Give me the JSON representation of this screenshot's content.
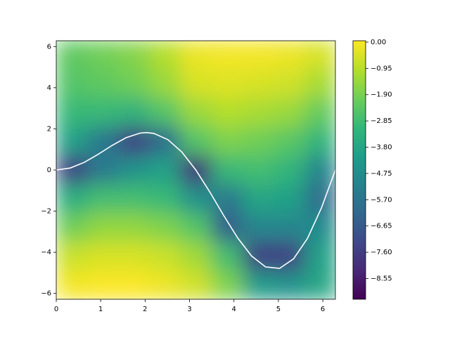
{
  "chart_data": {
    "type": "heatmap",
    "colormap": "viridis",
    "x": [
      0.35,
      1.05,
      1.75,
      2.45,
      3.15,
      3.85,
      4.55,
      5.25,
      5.95
    ],
    "y": [
      5.6,
      4.2,
      2.8,
      1.4,
      0,
      -1.4,
      -2.8,
      -4.2,
      -5.6
    ],
    "z": [
      [
        -2.3,
        -2.0,
        -1.7,
        -1.0,
        -0.2,
        -0.1,
        -0.1,
        -0.2,
        -0.5
      ],
      [
        -2.5,
        -2.3,
        -2.0,
        -1.4,
        -0.5,
        -0.4,
        -0.5,
        -0.6,
        -1.2
      ],
      [
        -3.0,
        -3.0,
        -3.3,
        -2.5,
        -1.4,
        -1.0,
        -1.2,
        -1.4,
        -2.2
      ],
      [
        -4.0,
        -5.5,
        -7.5,
        -6.0,
        -2.5,
        -1.8,
        -2.0,
        -2.4,
        -3.2
      ],
      [
        -7.5,
        -5.5,
        -4.5,
        -4.0,
        -8.0,
        -3.0,
        -2.8,
        -3.2,
        -5.0
      ],
      [
        -3.5,
        -2.8,
        -2.8,
        -3.0,
        -4.5,
        -5.5,
        -3.8,
        -4.0,
        -6.0
      ],
      [
        -2.0,
        -1.5,
        -1.5,
        -1.8,
        -2.5,
        -6.5,
        -5.0,
        -5.0,
        -4.8
      ],
      [
        -0.7,
        -0.5,
        -0.5,
        -0.7,
        -1.3,
        -2.8,
        -7.5,
        -7.5,
        -4.0
      ],
      [
        -0.1,
        0,
        0,
        -0.2,
        -0.6,
        -1.8,
        -4.2,
        -4.5,
        -3.8
      ]
    ],
    "xlim": [
      0,
      6.283
    ],
    "ylim": [
      -6.283,
      6.283
    ],
    "xticks": [
      0,
      1,
      2,
      3,
      4,
      5,
      6
    ],
    "yticks": [
      {
        "value": -6,
        "label": "−6"
      },
      {
        "value": -4,
        "label": "−4"
      },
      {
        "value": -2,
        "label": "−2"
      },
      0,
      2,
      4,
      6
    ],
    "clim": [
      -9.3,
      0.05
    ],
    "colorbar_ticks": [
      {
        "value": 0,
        "label": "0.00"
      },
      {
        "value": -0.95,
        "label": "−0.95"
      },
      {
        "value": -1.9,
        "label": "−1.90"
      },
      {
        "value": -2.85,
        "label": "−2.85"
      },
      {
        "value": -3.8,
        "label": "−3.80"
      },
      {
        "value": -4.75,
        "label": "−4.75"
      },
      {
        "value": -5.7,
        "label": "−5.70"
      },
      {
        "value": -6.65,
        "label": "−6.65"
      },
      {
        "value": -7.6,
        "label": "−7.60"
      },
      {
        "value": -8.55,
        "label": "−8.55"
      }
    ],
    "curve": {
      "color": "#ffffff",
      "x": [
        0,
        0.314,
        0.628,
        0.942,
        1.257,
        1.571,
        1.885,
        2.03,
        2.199,
        2.513,
        2.827,
        3.142,
        3.456,
        3.77,
        4.084,
        4.398,
        4.712,
        5.027,
        5.341,
        5.655,
        5.969,
        6.283
      ],
      "y": [
        0,
        0.097,
        0.369,
        0.762,
        1.195,
        1.571,
        1.793,
        1.819,
        1.779,
        1.477,
        0.874,
        0,
        -1.068,
        -2.216,
        -3.304,
        -4.183,
        -4.712,
        -4.781,
        -4.321,
        -3.325,
        -1.844,
        0
      ]
    }
  }
}
